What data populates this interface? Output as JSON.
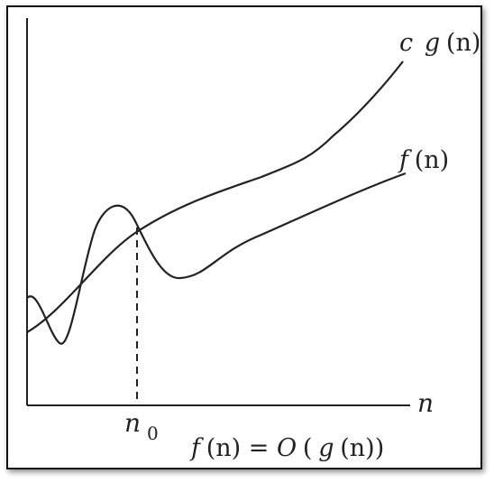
{
  "diagram": {
    "curve_cg_label_c": "c",
    "curve_cg_label_g": "g",
    "curve_cg_label_arg": "(n)",
    "curve_f_label_f": "f",
    "curve_f_label_arg": "(n)",
    "x_axis_label": "n",
    "threshold_label_main": "n",
    "threshold_label_sub": "0",
    "caption": {
      "f": "f",
      "part1": "(n) = ",
      "O": "O",
      "part2": "(",
      "g": "g",
      "part3": "(n))"
    }
  },
  "colors": {
    "ink": "#222222",
    "frame": "#111111"
  }
}
